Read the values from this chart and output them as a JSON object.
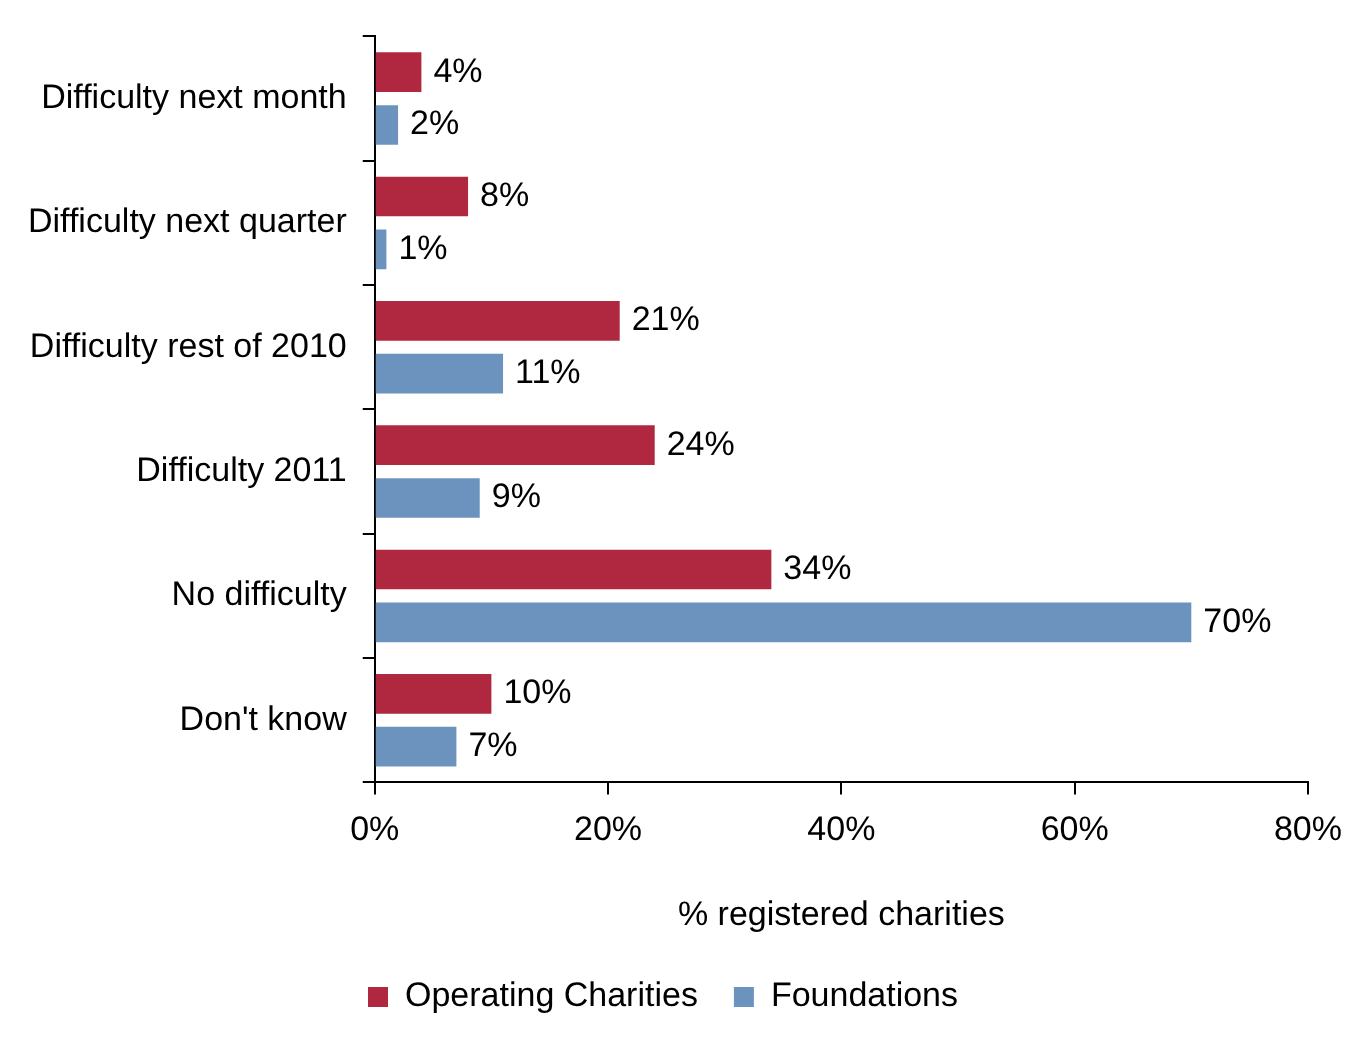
{
  "chart_data": {
    "type": "bar",
    "orientation": "horizontal",
    "xlabel": "% registered charities",
    "categories": [
      "Difficulty next month",
      "Difficulty next quarter",
      "Difficulty rest of 2010",
      "Difficulty 2011",
      "No difficulty",
      "Don't know"
    ],
    "series": [
      {
        "name": "Operating Charities",
        "color": "#b0283f",
        "values": [
          4,
          8,
          21,
          24,
          34,
          10
        ],
        "value_labels": [
          "4%",
          "8%",
          "21%",
          "24%",
          "34%",
          "10%"
        ]
      },
      {
        "name": "Foundations",
        "color": "#6b93bd",
        "values": [
          2,
          1,
          11,
          9,
          70,
          7
        ],
        "value_labels": [
          "2%",
          "1%",
          "11%",
          "9%",
          "70%",
          "7%"
        ]
      }
    ],
    "xlim": [
      0,
      80
    ],
    "xticks": [
      {
        "value": 0,
        "label": "0%"
      },
      {
        "value": 20,
        "label": "20%"
      },
      {
        "value": 40,
        "label": "40%"
      },
      {
        "value": 60,
        "label": "60%"
      },
      {
        "value": 80,
        "label": "80%"
      }
    ],
    "grid": false,
    "legend": "bottom"
  }
}
